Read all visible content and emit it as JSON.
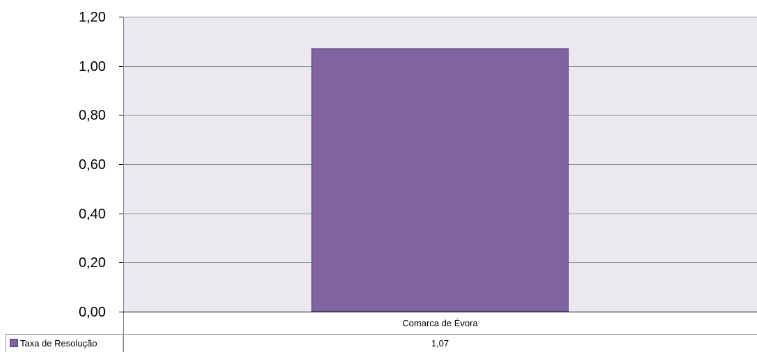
{
  "chart_data": {
    "type": "bar",
    "categories": [
      "Comarca de Évora"
    ],
    "series": [
      {
        "name": "Taxa de Resolução",
        "values": [
          1.07
        ],
        "color": "#8064a2"
      }
    ],
    "ylim": [
      0,
      1.2
    ],
    "yticks": [
      0,
      0.2,
      0.4,
      0.6,
      0.8,
      1.0,
      1.2
    ],
    "ytick_labels": [
      "0,00",
      "0,20",
      "0,40",
      "0,60",
      "0,80",
      "1,00",
      "1,20"
    ],
    "data_table": {
      "row_label": "Taxa de Resolução",
      "cell_values": [
        "1,07"
      ]
    },
    "grid": true,
    "legend": "data-table-left",
    "plot_background": "#ebe8f0",
    "bar_border": "#4f3d6b",
    "gridline_color": "#8c8c8c"
  }
}
